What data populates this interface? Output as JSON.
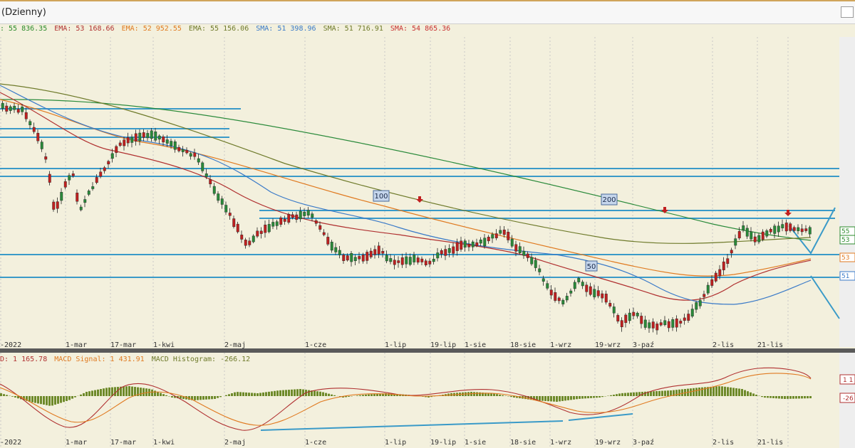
{
  "window": {
    "title": "(Dzienny)"
  },
  "legend": [
    {
      "text": ": 55 836.35",
      "color": "#2a8a2a"
    },
    {
      "text": "EMA: 53 168.66",
      "color": "#b03030"
    },
    {
      "text": "EMA: 52 952.55",
      "color": "#e07a20"
    },
    {
      "text": "EMA: 55 156.06",
      "color": "#6e7a2a"
    },
    {
      "text": "SMA: 51 398.96",
      "color": "#3a7ac8"
    },
    {
      "text": "SMA: 51 716.91",
      "color": "#6e7a2a"
    },
    {
      "text": "SMA: 54 865.36",
      "color": "#c83030"
    }
  ],
  "macd_legend": [
    {
      "text": "D: 1 165.78",
      "color": "#b03030"
    },
    {
      "text": "MACD Signal: 1 431.91",
      "color": "#e07a20"
    },
    {
      "text": "MACD Histogram: -266.12",
      "color": "#6e7a2a"
    }
  ],
  "x_axis_labels": [
    "-2022",
    "1-mar",
    "17-mar",
    "1-kwi",
    "2-maj",
    "1-cze",
    "1-lip",
    "19-lip",
    "1-sie",
    "18-sie",
    "1-wrz",
    "19-wrz",
    "3-paź",
    "2-lis",
    "21-lis"
  ],
  "chart_labels": {
    "sma100": "100",
    "sma200": "200",
    "sma50": "50"
  },
  "price_tags": [
    {
      "text": "55",
      "color": "#2a8a2a"
    },
    {
      "text": "53",
      "color": "#2a8a2a"
    },
    {
      "text": "53",
      "color": "#e07a20"
    },
    {
      "text": "51",
      "color": "#3a7ac8"
    }
  ],
  "macd_tags": [
    {
      "text": "1 1",
      "color": "#b03030"
    },
    {
      "text": "-26",
      "color": "#b03030"
    }
  ],
  "colors": {
    "background": "#f3f0dd",
    "support_lines": "#3a9ac8",
    "candle_up": "#2a8a3a",
    "candle_down": "#c02020",
    "histogram": "#6e8a2a"
  }
}
